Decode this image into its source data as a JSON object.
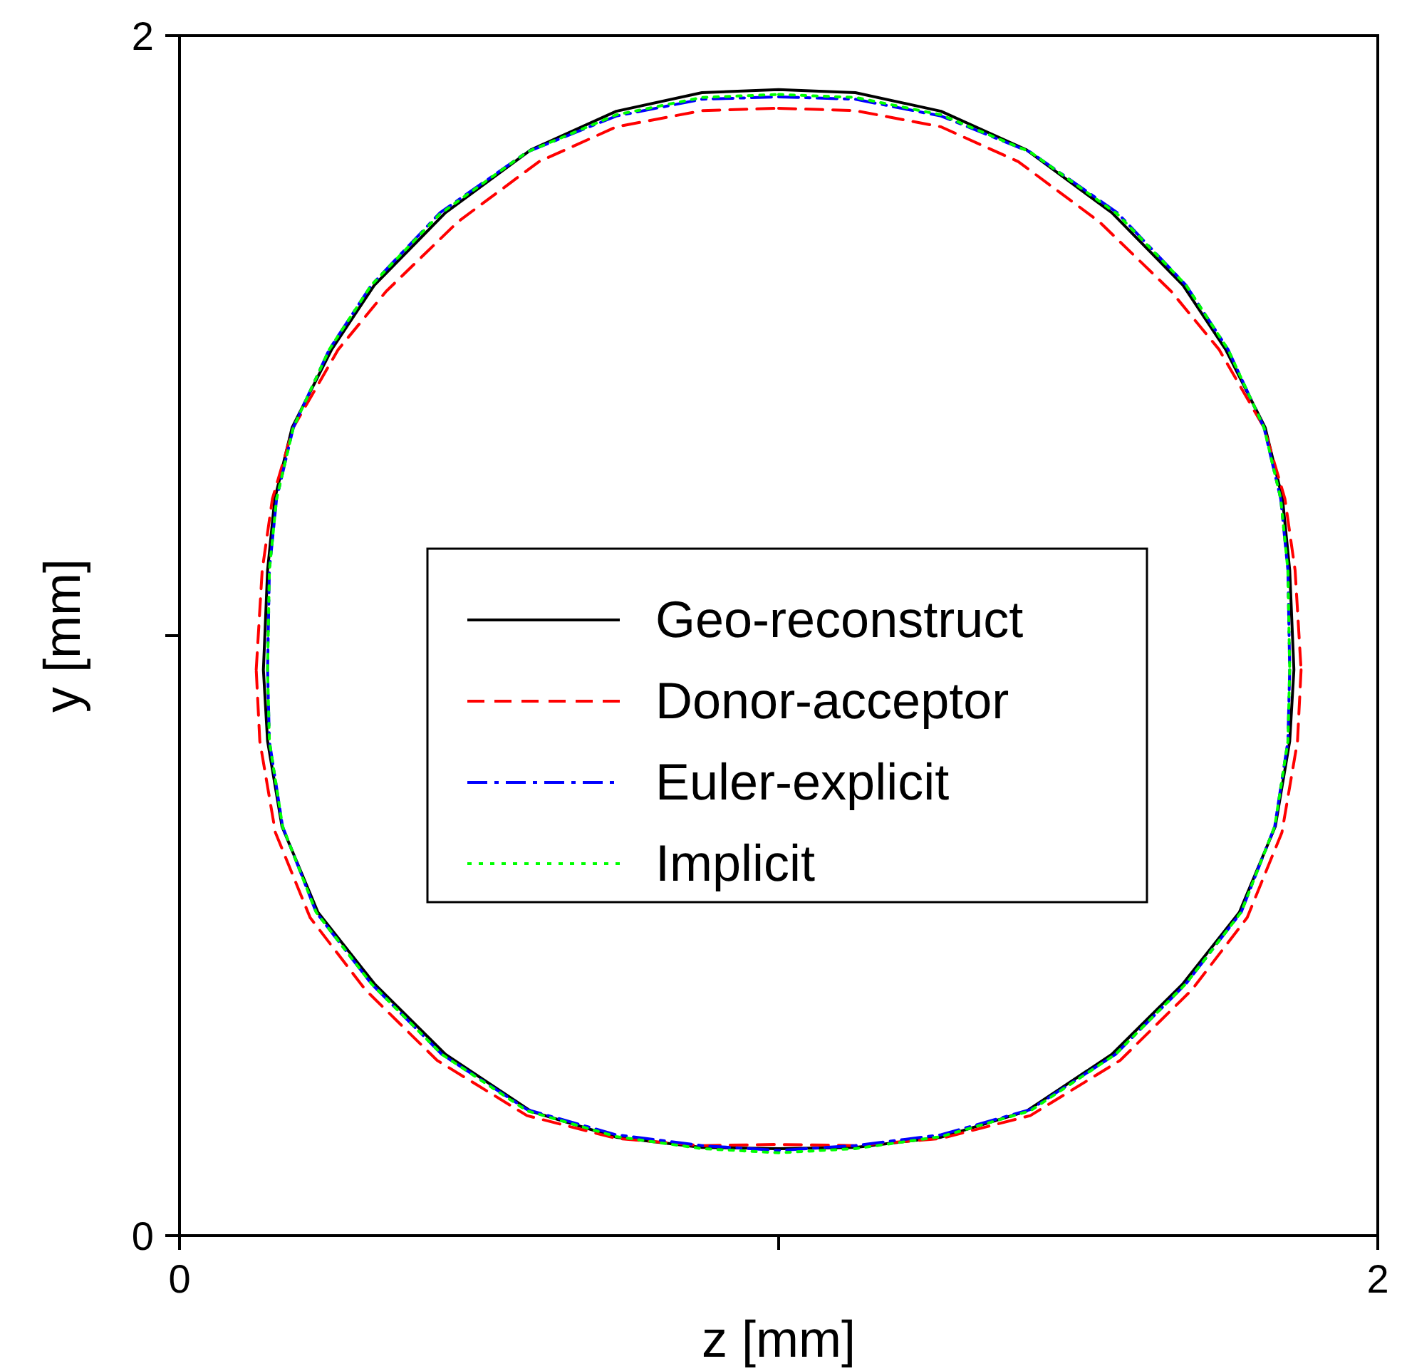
{
  "chart_data": {
    "type": "line",
    "xlabel": "z [mm]",
    "ylabel": "y [mm]",
    "xlim": [
      0,
      2
    ],
    "ylim": [
      0,
      2
    ],
    "xticks": [
      0,
      {
        "value": 1,
        "label": null
      },
      2
    ],
    "yticks": [
      0,
      {
        "value": 1,
        "label": null
      },
      2
    ],
    "grid": false,
    "legend": "center",
    "marker": "none",
    "x": [
      1.0,
      1.128,
      1.271,
      1.413,
      1.556,
      1.675,
      1.746,
      1.812,
      1.841,
      1.853,
      1.86,
      1.853,
      1.829,
      1.769,
      1.675,
      1.556,
      1.413,
      1.271,
      1.128,
      1.0,
      0.872,
      0.729,
      0.587,
      0.444,
      0.325,
      0.231,
      0.171,
      0.147,
      0.14,
      0.147,
      0.159,
      0.188,
      0.254,
      0.325,
      0.444,
      0.587,
      0.729,
      0.872,
      1.0
    ],
    "series": [
      {
        "name": "Geo-reconstruct",
        "color": "#000000",
        "line_style": "solid",
        "values": [
          1.91,
          1.905,
          1.874,
          1.81,
          1.705,
          1.584,
          1.477,
          1.347,
          1.228,
          1.109,
          0.943,
          0.824,
          0.682,
          0.539,
          0.42,
          0.302,
          0.207,
          0.164,
          0.147,
          0.145,
          0.147,
          0.164,
          0.207,
          0.302,
          0.42,
          0.539,
          0.682,
          0.824,
          0.943,
          1.109,
          1.228,
          1.347,
          1.477,
          1.584,
          1.705,
          1.81,
          1.874,
          1.905,
          1.91
        ]
      },
      {
        "name": "Donor-acceptor",
        "color": "#ff0000",
        "line_style": "dashed",
        "x": [
          1.0,
          1.128,
          1.271,
          1.4,
          1.535,
          1.655,
          1.735,
          1.81,
          1.845,
          1.862,
          1.872,
          1.866,
          1.84,
          1.782,
          1.69,
          1.57,
          1.42,
          1.271,
          1.128,
          1.0,
          0.872,
          0.729,
          0.58,
          0.43,
          0.31,
          0.218,
          0.16,
          0.134,
          0.128,
          0.138,
          0.155,
          0.19,
          0.265,
          0.345,
          0.465,
          0.6,
          0.729,
          0.872,
          1.0
        ],
        "values": [
          1.879,
          1.875,
          1.848,
          1.79,
          1.69,
          1.574,
          1.477,
          1.347,
          1.228,
          1.109,
          0.943,
          0.824,
          0.672,
          0.53,
          0.41,
          0.292,
          0.2,
          0.162,
          0.15,
          0.152,
          0.15,
          0.162,
          0.2,
          0.292,
          0.41,
          0.53,
          0.672,
          0.824,
          0.943,
          1.109,
          1.228,
          1.347,
          1.477,
          1.574,
          1.69,
          1.79,
          1.848,
          1.875,
          1.879
        ]
      },
      {
        "name": "Euler-explicit",
        "color": "#0000ff",
        "line_style": "dashdot",
        "x": [
          1.0,
          1.128,
          1.271,
          1.42,
          1.565,
          1.68,
          1.75,
          1.81,
          1.838,
          1.85,
          1.853,
          1.85,
          1.828,
          1.772,
          1.68,
          1.562,
          1.42,
          1.271,
          1.128,
          1.0,
          0.872,
          0.729,
          0.58,
          0.438,
          0.32,
          0.228,
          0.172,
          0.15,
          0.147,
          0.15,
          0.162,
          0.19,
          0.25,
          0.32,
          0.435,
          0.58,
          0.729,
          0.872,
          1.0
        ],
        "values": [
          1.898,
          1.894,
          1.866,
          1.806,
          1.705,
          1.584,
          1.477,
          1.347,
          1.228,
          1.109,
          0.943,
          0.824,
          0.682,
          0.539,
          0.42,
          0.302,
          0.21,
          0.168,
          0.15,
          0.142,
          0.15,
          0.168,
          0.21,
          0.302,
          0.42,
          0.539,
          0.682,
          0.824,
          0.943,
          1.109,
          1.228,
          1.347,
          1.477,
          1.584,
          1.705,
          1.806,
          1.866,
          1.894,
          1.898
        ]
      },
      {
        "name": "Implicit",
        "color": "#00ff00",
        "line_style": "dotted",
        "x": [
          1.0,
          1.128,
          1.271,
          1.42,
          1.565,
          1.68,
          1.75,
          1.81,
          1.838,
          1.85,
          1.853,
          1.85,
          1.828,
          1.772,
          1.68,
          1.562,
          1.42,
          1.271,
          1.128,
          1.0,
          0.872,
          0.729,
          0.58,
          0.438,
          0.32,
          0.228,
          0.172,
          0.15,
          0.147,
          0.15,
          0.162,
          0.19,
          0.25,
          0.32,
          0.435,
          0.58,
          0.729,
          0.872,
          1.0
        ],
        "values": [
          1.902,
          1.897,
          1.868,
          1.806,
          1.703,
          1.584,
          1.477,
          1.347,
          1.228,
          1.109,
          0.943,
          0.824,
          0.682,
          0.539,
          0.42,
          0.302,
          0.208,
          0.165,
          0.145,
          0.138,
          0.145,
          0.165,
          0.208,
          0.302,
          0.42,
          0.539,
          0.682,
          0.824,
          0.943,
          1.109,
          1.228,
          1.347,
          1.477,
          1.584,
          1.703,
          1.806,
          1.868,
          1.897,
          1.902
        ]
      }
    ]
  }
}
